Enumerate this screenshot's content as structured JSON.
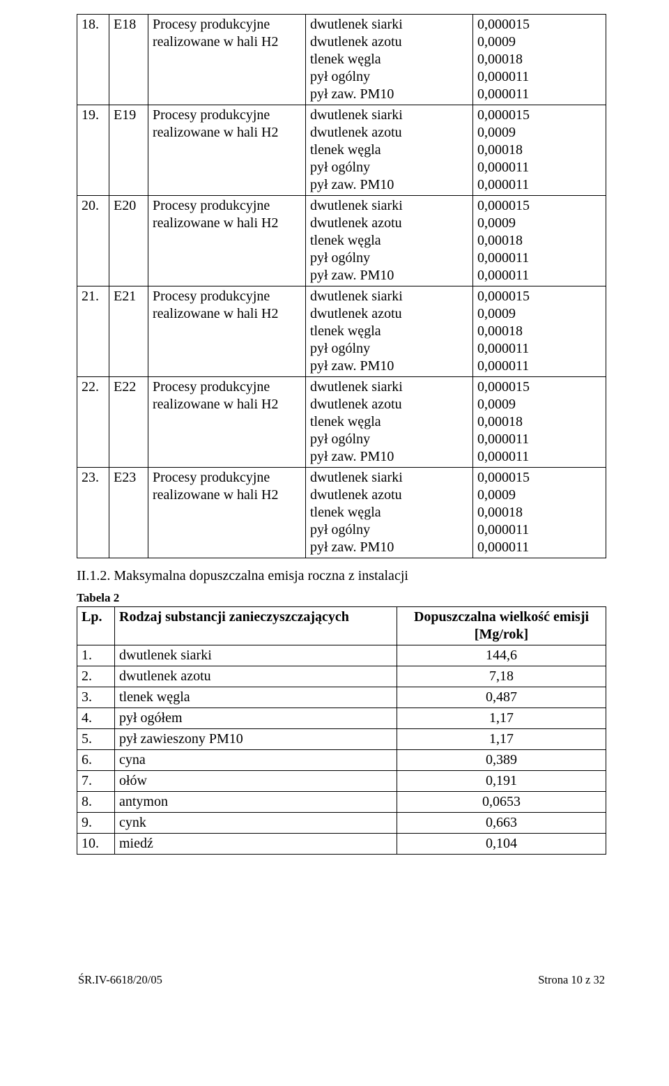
{
  "table1": {
    "rows": [
      {
        "num": "18.",
        "code": "E18",
        "proc": "Procesy produkcyjne realizowane w hali H2",
        "subs": [
          "dwutlenek siarki",
          "dwutlenek azotu",
          "tlenek węgla",
          "pył ogólny",
          "pył zaw. PM10"
        ],
        "vals": [
          "0,000015",
          "0,0009",
          "0,00018",
          "0,000011",
          "0,000011"
        ]
      },
      {
        "num": "19.",
        "code": "E19",
        "proc": "Procesy produkcyjne realizowane w hali H2",
        "subs": [
          "dwutlenek siarki",
          "dwutlenek azotu",
          "tlenek węgla",
          "pył ogólny",
          "pył zaw. PM10"
        ],
        "vals": [
          "0,000015",
          "0,0009",
          "0,00018",
          "0,000011",
          "0,000011"
        ]
      },
      {
        "num": "20.",
        "code": "E20",
        "proc": "Procesy produkcyjne realizowane w hali H2",
        "subs": [
          "dwutlenek siarki",
          "dwutlenek azotu",
          "tlenek węgla",
          "pył ogólny",
          "pył zaw. PM10"
        ],
        "vals": [
          "0,000015",
          "0,0009",
          "0,00018",
          "0,000011",
          "0,000011"
        ]
      },
      {
        "num": "21.",
        "code": "E21",
        "proc": "Procesy produkcyjne realizowane w hali H2",
        "subs": [
          "dwutlenek siarki",
          "dwutlenek azotu",
          "tlenek węgla",
          "pył ogólny",
          "pył zaw. PM10"
        ],
        "vals": [
          "0,000015",
          "0,0009",
          "0,00018",
          "0,000011",
          "0,000011"
        ]
      },
      {
        "num": "22.",
        "code": "E22",
        "proc": "Procesy produkcyjne realizowane w hali H2",
        "subs": [
          "dwutlenek siarki",
          "dwutlenek azotu",
          "tlenek węgla",
          "pył ogólny",
          "pył zaw. PM10"
        ],
        "vals": [
          "0,000015",
          "0,0009",
          "0,00018",
          "0,000011",
          "0,000011"
        ]
      },
      {
        "num": "23.",
        "code": "E23",
        "proc": "Procesy produkcyjne realizowane w hali H2",
        "subs": [
          "dwutlenek siarki",
          "dwutlenek azotu",
          "tlenek węgla",
          "pył ogólny",
          "pył zaw. PM10"
        ],
        "vals": [
          "0,000015",
          "0,0009",
          "0,00018",
          "0,000011",
          "0,000011"
        ]
      }
    ]
  },
  "section_heading": "II.1.2. Maksymalna dopuszczalna emisja roczna z instalacji",
  "tabela2_label": "Tabela 2",
  "table2": {
    "headers": {
      "lp": "Lp.",
      "rodzaj": "Rodzaj substancji zanieczyszczających",
      "dop": "Dopuszczalna wielkość emisji [Mg/rok]"
    },
    "rows": [
      {
        "n": "1.",
        "s": "dwutlenek siarki",
        "v": "144,6"
      },
      {
        "n": "2.",
        "s": "dwutlenek azotu",
        "v": "7,18"
      },
      {
        "n": "3.",
        "s": "tlenek węgla",
        "v": "0,487"
      },
      {
        "n": "4.",
        "s": "pył ogółem",
        "v": "1,17"
      },
      {
        "n": "5.",
        "s": "pył zawieszony PM10",
        "v": "1,17"
      },
      {
        "n": "6.",
        "s": "cyna",
        "v": "0,389"
      },
      {
        "n": "7.",
        "s": "ołów",
        "v": "0,191"
      },
      {
        "n": "8.",
        "s": "antymon",
        "v": "0,0653"
      },
      {
        "n": "9.",
        "s": "cynk",
        "v": "0,663"
      },
      {
        "n": "10.",
        "s": "miedź",
        "v": "0,104"
      }
    ]
  },
  "footer": {
    "left": "ŚR.IV-6618/20/05",
    "right": "Strona 10 z 32"
  }
}
